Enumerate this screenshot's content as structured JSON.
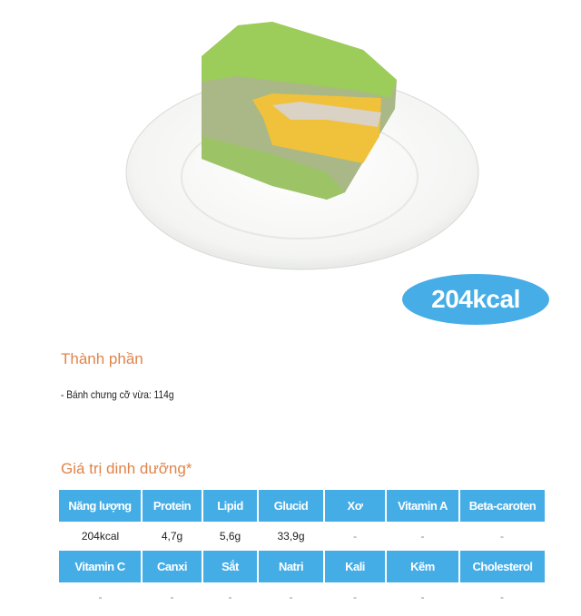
{
  "calories_badge": "204kcal",
  "ingredients": {
    "heading": "Thành phần",
    "items": [
      "- Bánh chưng cỡ vừa: 114g"
    ]
  },
  "nutrition": {
    "heading": "Giá trị dinh dưỡng*",
    "row1_headers": [
      "Năng lượng",
      "Protein",
      "Lipid",
      "Glucid",
      "Xơ",
      "Vitamin A",
      "Beta-caroten"
    ],
    "row1_values": [
      "204kcal",
      "4,7g",
      "5,6g",
      "33,9g",
      "-",
      "-",
      "-"
    ],
    "row2_headers": [
      "Vitamin C",
      "Canxi",
      "Sắt",
      "Natri",
      "Kali",
      "Kẽm",
      "Cholesterol"
    ],
    "row2_values": [
      "-",
      "-",
      "-",
      "-",
      "-",
      "-",
      "-"
    ]
  },
  "colors": {
    "accent_blue": "#45ade6",
    "heading_orange": "#e0844a"
  }
}
